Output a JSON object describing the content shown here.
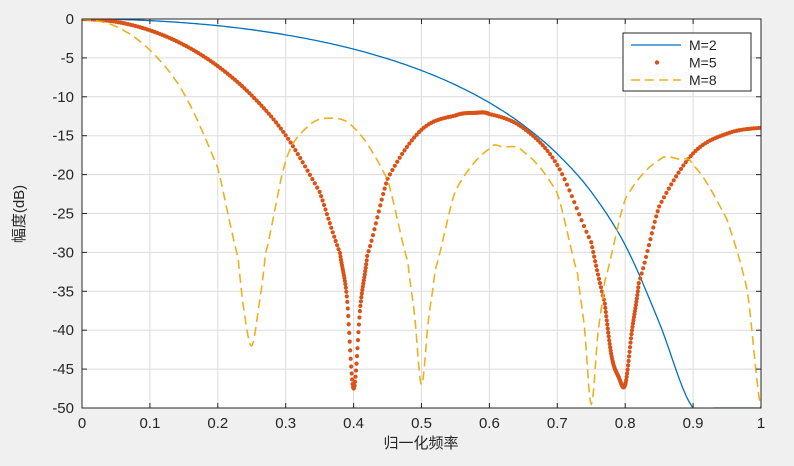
{
  "chart_data": {
    "type": "line",
    "title": "",
    "xlabel": "归一化频率",
    "ylabel": "幅度(dB)",
    "xlim": [
      0,
      1
    ],
    "ylim": [
      -50,
      0
    ],
    "grid": true,
    "legend_position": "top-right",
    "x_ticks": [
      "0",
      "0.1",
      "0.2",
      "0.3",
      "0.4",
      "0.5",
      "0.6",
      "0.7",
      "0.8",
      "0.9",
      "1"
    ],
    "y_ticks": [
      "0",
      "-5",
      "-10",
      "-15",
      "-20",
      "-25",
      "-30",
      "-35",
      "-40",
      "-45",
      "-50"
    ],
    "series": [
      {
        "name": "M=2",
        "style": "solid",
        "color": "#0072BD",
        "x": [
          0,
          0.05,
          0.1,
          0.15,
          0.2,
          0.25,
          0.3,
          0.35,
          0.4,
          0.45,
          0.5,
          0.55,
          0.6,
          0.65,
          0.7,
          0.75,
          0.8,
          0.85,
          0.9,
          0.93,
          0.95,
          0.97,
          0.98,
          0.99,
          1.0
        ],
        "y": [
          0,
          -0.05,
          -0.21,
          -0.48,
          -0.86,
          -1.38,
          -2.04,
          -2.86,
          -3.87,
          -5.11,
          -6.62,
          -8.47,
          -10.76,
          -13.64,
          -17.34,
          -22.23,
          -29.06,
          -39.0,
          -50.0,
          -50.0,
          -50.0,
          -50.0,
          -50.0,
          -50.0,
          -50.0
        ]
      },
      {
        "name": "M=5",
        "style": "dots",
        "color": "#D95319",
        "x": [
          0,
          0.05,
          0.1,
          0.15,
          0.2,
          0.25,
          0.3,
          0.35,
          0.38,
          0.39,
          0.4,
          0.41,
          0.42,
          0.45,
          0.5,
          0.55,
          0.58,
          0.6,
          0.65,
          0.7,
          0.75,
          0.77,
          0.78,
          0.79,
          0.8,
          0.81,
          0.82,
          0.85,
          0.9,
          0.95,
          1.0
        ],
        "y": [
          0,
          -0.36,
          -1.45,
          -3.32,
          -6.06,
          -9.83,
          -14.95,
          -22.22,
          -30.08,
          -35.65,
          -47.5,
          -36.87,
          -30.46,
          -20.54,
          -14.24,
          -12.4,
          -12.06,
          -12.22,
          -14.02,
          -18.78,
          -28.7,
          -36.6,
          -43.36,
          -45.95,
          -47.0,
          -40.02,
          -33.95,
          -24.09,
          -17.28,
          -14.73,
          -13.98
        ]
      },
      {
        "name": "M=8",
        "style": "dashed",
        "color": "#EDB120",
        "x": [
          0,
          0.05,
          0.1,
          0.15,
          0.2,
          0.23,
          0.24,
          0.25,
          0.26,
          0.27,
          0.3,
          0.33,
          0.36,
          0.4,
          0.45,
          0.48,
          0.49,
          0.5,
          0.51,
          0.52,
          0.55,
          0.6,
          0.62,
          0.65,
          0.7,
          0.73,
          0.74,
          0.75,
          0.76,
          0.77,
          0.8,
          0.85,
          0.88,
          0.9,
          0.95,
          0.98,
          1.0
        ],
        "y": [
          0,
          -0.96,
          -4.0,
          -9.56,
          -19.15,
          -30.73,
          -38.37,
          -42.0,
          -37.19,
          -30.25,
          -18.25,
          -14.01,
          -12.76,
          -13.94,
          -20.66,
          -31.29,
          -38.23,
          -47.0,
          -38.84,
          -32.31,
          -22.05,
          -16.69,
          -16.45,
          -17.05,
          -22.41,
          -32.79,
          -39.7,
          -49.5,
          -40.34,
          -33.66,
          -23.16,
          -18.13,
          -18.02,
          -18.79,
          -25.79,
          -35.0,
          -50.0
        ]
      }
    ]
  }
}
